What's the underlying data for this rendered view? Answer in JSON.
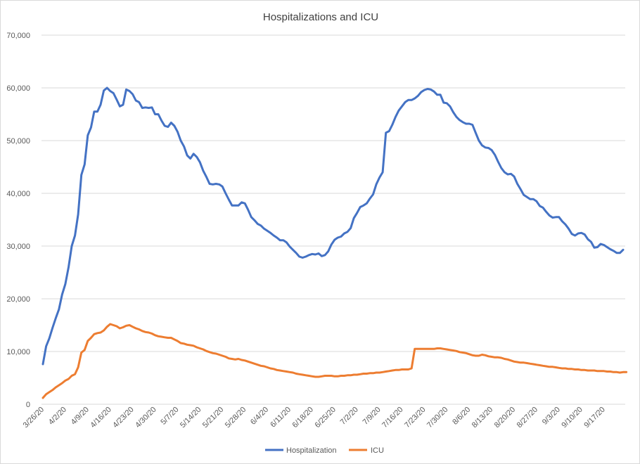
{
  "chart_data": {
    "type": "line",
    "title": "Hospitalizations and ICU",
    "xlabel": "",
    "ylabel": "",
    "ylim": [
      0,
      70000
    ],
    "yticks": [
      0,
      10000,
      20000,
      30000,
      40000,
      50000,
      60000,
      70000
    ],
    "ytick_labels": [
      "0",
      "10,000",
      "20,000",
      "30,000",
      "40,000",
      "50,000",
      "60,000",
      "70,000"
    ],
    "xtick_labels": [
      "3/26/20",
      "4/2/20",
      "4/9/20",
      "4/16/20",
      "4/23/20",
      "4/30/20",
      "5/7/20",
      "5/14/20",
      "5/21/20",
      "5/28/20",
      "6/4/20",
      "6/11/20",
      "6/18/20",
      "6/25/20",
      "7/2/20",
      "7/9/20",
      "7/16/20",
      "7/23/20",
      "7/30/20",
      "8/6/20",
      "8/13/20",
      "8/20/20",
      "8/27/20",
      "9/3/20",
      "9/10/20",
      "9/17/20"
    ],
    "grid": true,
    "legend_position": "bottom",
    "series": [
      {
        "name": "Hospitalization",
        "color": "#4472c4",
        "values": [
          7600,
          11000,
          12500,
          14500,
          16300,
          18000,
          20800,
          22800,
          26000,
          30000,
          32000,
          36000,
          43500,
          45500,
          51000,
          52500,
          55500,
          55500,
          56800,
          59500,
          60000,
          59400,
          59000,
          57800,
          56500,
          56800,
          59700,
          59400,
          58800,
          57600,
          57300,
          56200,
          56300,
          56200,
          56300,
          55000,
          55000,
          53800,
          52800,
          52600,
          53400,
          52800,
          51700,
          50000,
          48900,
          47200,
          46600,
          47500,
          46900,
          45900,
          44300,
          43100,
          41800,
          41700,
          41800,
          41700,
          41300,
          40000,
          38800,
          37700,
          37700,
          37700,
          38300,
          38100,
          36900,
          35500,
          34900,
          34200,
          33900,
          33300,
          32900,
          32500,
          32000,
          31600,
          31100,
          31100,
          30700,
          29900,
          29300,
          28700,
          28000,
          27800,
          28000,
          28300,
          28500,
          28400,
          28600,
          28100,
          28300,
          29000,
          30300,
          31200,
          31600,
          31800,
          32400,
          32700,
          33400,
          35300,
          36300,
          37400,
          37700,
          38100,
          39000,
          39800,
          41700,
          43000,
          44000,
          51500,
          51800,
          53000,
          54500,
          55700,
          56500,
          57300,
          57700,
          57700,
          58000,
          58500,
          59200,
          59600,
          59800,
          59700,
          59300,
          58700,
          58700,
          57200,
          57100,
          56500,
          55400,
          54500,
          53900,
          53500,
          53200,
          53200,
          53000,
          51500,
          50000,
          49100,
          48700,
          48600,
          48200,
          47300,
          46000,
          44800,
          44000,
          43600,
          43700,
          43200,
          41800,
          40800,
          39700,
          39300,
          38900,
          38900,
          38500,
          37600,
          37300,
          36500,
          35800,
          35400,
          35500,
          35500,
          34700,
          34100,
          33300,
          32300,
          32000,
          32400,
          32500,
          32200,
          31300,
          30800,
          29700,
          29800,
          30400,
          30200,
          29800,
          29400,
          29100,
          28700,
          28700,
          29300
        ]
      },
      {
        "name": "ICU",
        "color": "#ed7d31",
        "values": [
          1200,
          1900,
          2300,
          2700,
          3200,
          3600,
          4000,
          4500,
          4800,
          5400,
          5700,
          7000,
          9800,
          10300,
          12000,
          12600,
          13300,
          13500,
          13600,
          14000,
          14700,
          15200,
          15000,
          14800,
          14400,
          14600,
          14900,
          15000,
          14700,
          14400,
          14200,
          13900,
          13700,
          13600,
          13400,
          13100,
          12900,
          12800,
          12700,
          12600,
          12600,
          12300,
          12000,
          11600,
          11500,
          11300,
          11200,
          11100,
          10800,
          10600,
          10400,
          10100,
          9900,
          9700,
          9600,
          9400,
          9200,
          9000,
          8700,
          8600,
          8500,
          8600,
          8400,
          8300,
          8100,
          7900,
          7700,
          7500,
          7300,
          7200,
          7000,
          6800,
          6700,
          6500,
          6400,
          6300,
          6200,
          6100,
          6000,
          5800,
          5700,
          5600,
          5500,
          5400,
          5300,
          5200,
          5200,
          5300,
          5400,
          5400,
          5400,
          5300,
          5300,
          5400,
          5400,
          5500,
          5500,
          5600,
          5600,
          5700,
          5800,
          5800,
          5900,
          5900,
          6000,
          6000,
          6100,
          6200,
          6300,
          6400,
          6500,
          6500,
          6600,
          6600,
          6600,
          6800,
          10500,
          10500,
          10500,
          10500,
          10500,
          10500,
          10500,
          10600,
          10600,
          10500,
          10400,
          10300,
          10200,
          10100,
          9900,
          9800,
          9700,
          9500,
          9300,
          9200,
          9200,
          9400,
          9300,
          9100,
          9000,
          8900,
          8900,
          8800,
          8600,
          8500,
          8300,
          8100,
          8000,
          7900,
          7900,
          7800,
          7700,
          7600,
          7500,
          7400,
          7300,
          7200,
          7100,
          7100,
          7000,
          6900,
          6800,
          6800,
          6700,
          6700,
          6600,
          6600,
          6500,
          6500,
          6400,
          6400,
          6400,
          6300,
          6300,
          6300,
          6200,
          6200,
          6100,
          6100,
          6000,
          6100,
          6100
        ]
      }
    ]
  }
}
